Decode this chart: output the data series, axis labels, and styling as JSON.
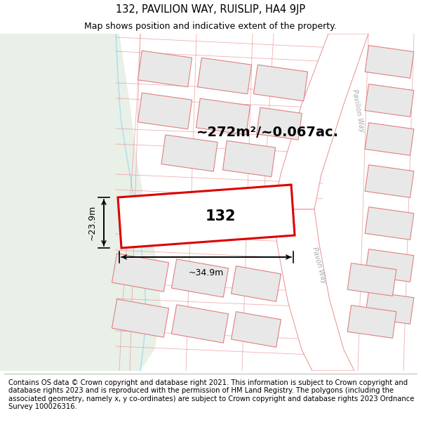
{
  "title_line1": "132, PAVILION WAY, RUISLIP, HA4 9JP",
  "title_line2": "Map shows position and indicative extent of the property.",
  "area_text": "~272m²/~0.067ac.",
  "label_132": "132",
  "dim_width": "~34.9m",
  "dim_height": "~23.9m",
  "footer_text": "Contains OS data © Crown copyright and database right 2021. This information is subject to Crown copyright and database rights 2023 and is reproduced with the permission of HM Land Registry. The polygons (including the associated geometry, namely x, y co-ordinates) are subject to Crown copyright and database rights 2023 Ordnance Survey 100026316.",
  "bg_map_color": "#f7f7f7",
  "bg_green_color": "#e8f0e8",
  "highlight_plot_color": "#ffffff",
  "highlight_plot_edge": "#dd0000",
  "neighbor_fill": "#e8e8e8",
  "neighbor_edge": "#e08080",
  "road_line_color": "#e89090",
  "title_fontsize": 10.5,
  "subtitle_fontsize": 9,
  "footer_fontsize": 7.2,
  "figsize": [
    6.0,
    6.25
  ],
  "dpi": 100
}
